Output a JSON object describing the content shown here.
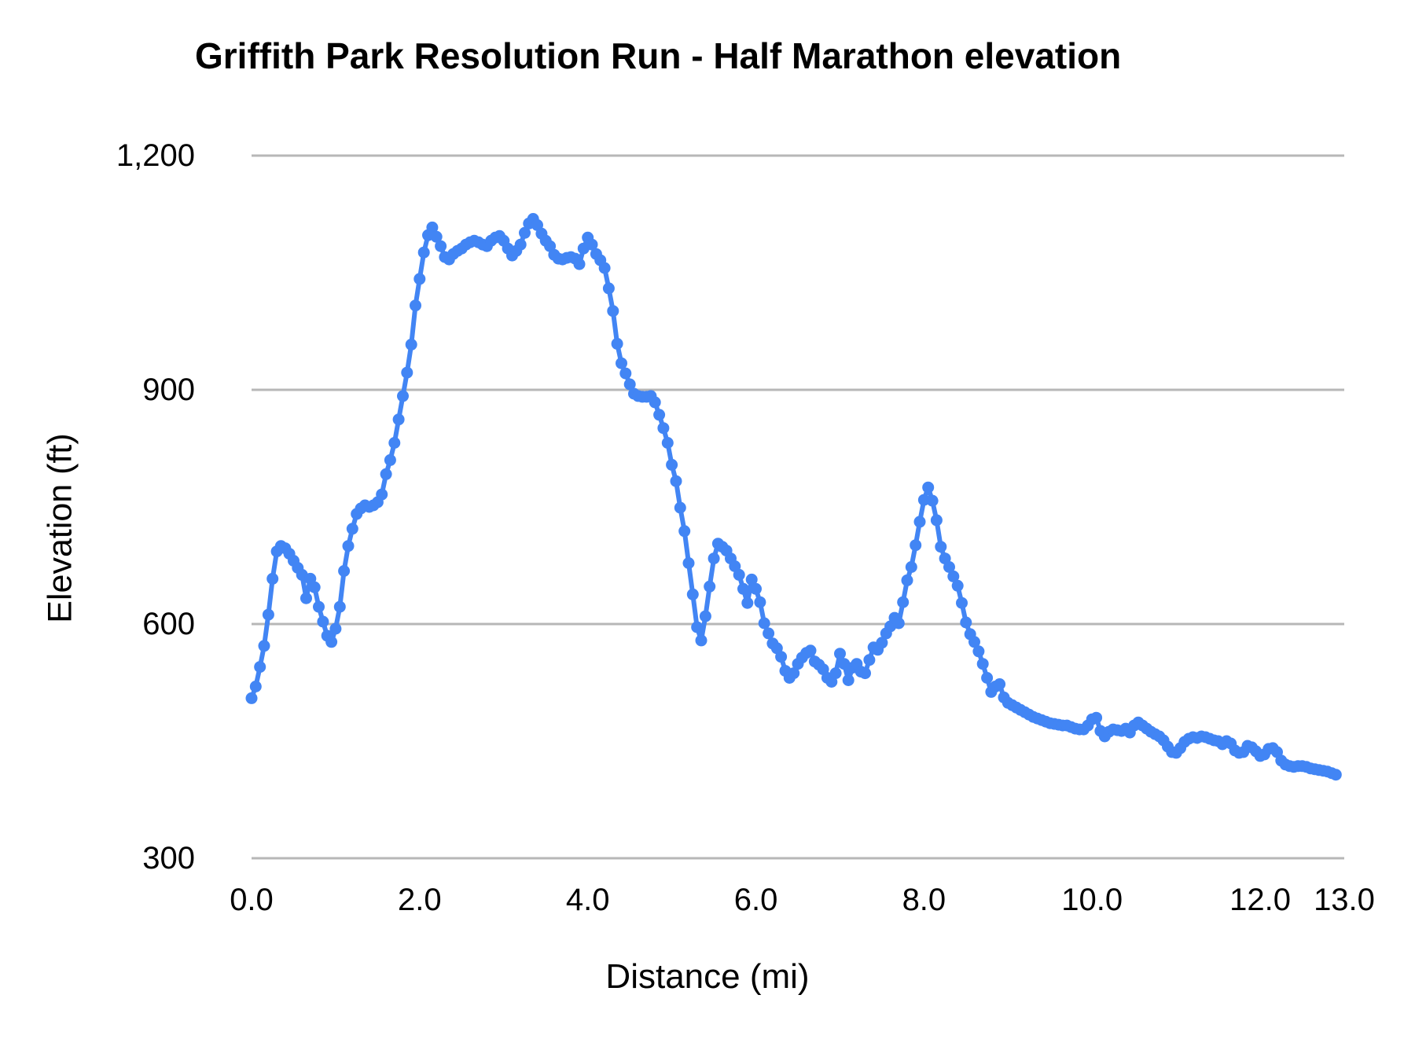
{
  "chart": {
    "title": "Griffith Park Resolution Run - Half Marathon elevation",
    "colors": {
      "series": "#4285f4",
      "gridline": "#b7b7b7",
      "text": "#000000",
      "background": "#ffffff"
    },
    "y_axis": {
      "title": "Elevation (ft)",
      "tick_labels": [
        "1,200",
        "900",
        "600",
        "300"
      ],
      "tick_values": [
        1200,
        900,
        600,
        300
      ]
    },
    "x_axis": {
      "title": "Distance (mi)",
      "tick_labels": [
        "0.0",
        "2.0",
        "4.0",
        "6.0",
        "8.0",
        "10.0",
        "12.0",
        "13.0"
      ],
      "tick_values": [
        0,
        2,
        4,
        6,
        8,
        10,
        12,
        13
      ]
    }
  },
  "chart_data": {
    "type": "line",
    "title": "Griffith Park Resolution Run - Half Marathon elevation",
    "xlabel": "Distance (mi)",
    "ylabel": "Elevation (ft)",
    "xlim": [
      0,
      13
    ],
    "ylim": [
      300,
      1200
    ],
    "grid": true,
    "legend": "none",
    "marker": "circle",
    "series_name": "Elevation",
    "points_mi_ft": [
      [
        0.0,
        505
      ],
      [
        0.05,
        520
      ],
      [
        0.1,
        545
      ],
      [
        0.15,
        572
      ],
      [
        0.2,
        612
      ],
      [
        0.25,
        658
      ],
      [
        0.3,
        693
      ],
      [
        0.35,
        700
      ],
      [
        0.4,
        697
      ],
      [
        0.45,
        690
      ],
      [
        0.5,
        681
      ],
      [
        0.55,
        672
      ],
      [
        0.6,
        663
      ],
      [
        0.65,
        633
      ],
      [
        0.7,
        658
      ],
      [
        0.75,
        647
      ],
      [
        0.8,
        622
      ],
      [
        0.85,
        603
      ],
      [
        0.9,
        585
      ],
      [
        0.95,
        577
      ],
      [
        1.0,
        594
      ],
      [
        1.05,
        622
      ],
      [
        1.1,
        668
      ],
      [
        1.15,
        700
      ],
      [
        1.2,
        722
      ],
      [
        1.25,
        741
      ],
      [
        1.3,
        748
      ],
      [
        1.35,
        752
      ],
      [
        1.4,
        750
      ],
      [
        1.45,
        752
      ],
      [
        1.5,
        756
      ],
      [
        1.55,
        766
      ],
      [
        1.6,
        792
      ],
      [
        1.65,
        810
      ],
      [
        1.7,
        832
      ],
      [
        1.75,
        862
      ],
      [
        1.8,
        892
      ],
      [
        1.85,
        922
      ],
      [
        1.9,
        958
      ],
      [
        1.95,
        1008
      ],
      [
        2.0,
        1042
      ],
      [
        2.05,
        1076
      ],
      [
        2.1,
        1098
      ],
      [
        2.15,
        1108
      ],
      [
        2.2,
        1096
      ],
      [
        2.25,
        1084
      ],
      [
        2.3,
        1070
      ],
      [
        2.35,
        1067
      ],
      [
        2.4,
        1074
      ],
      [
        2.45,
        1078
      ],
      [
        2.5,
        1081
      ],
      [
        2.55,
        1086
      ],
      [
        2.6,
        1089
      ],
      [
        2.65,
        1091
      ],
      [
        2.7,
        1089
      ],
      [
        2.75,
        1086
      ],
      [
        2.8,
        1084
      ],
      [
        2.85,
        1091
      ],
      [
        2.9,
        1095
      ],
      [
        2.95,
        1097
      ],
      [
        3.0,
        1091
      ],
      [
        3.05,
        1081
      ],
      [
        3.1,
        1072
      ],
      [
        3.15,
        1078
      ],
      [
        3.2,
        1086
      ],
      [
        3.25,
        1101
      ],
      [
        3.3,
        1113
      ],
      [
        3.35,
        1119
      ],
      [
        3.4,
        1111
      ],
      [
        3.45,
        1100
      ],
      [
        3.5,
        1091
      ],
      [
        3.55,
        1084
      ],
      [
        3.6,
        1073
      ],
      [
        3.65,
        1068
      ],
      [
        3.7,
        1067
      ],
      [
        3.75,
        1069
      ],
      [
        3.8,
        1070
      ],
      [
        3.85,
        1068
      ],
      [
        3.9,
        1061
      ],
      [
        3.95,
        1081
      ],
      [
        4.0,
        1095
      ],
      [
        4.05,
        1086
      ],
      [
        4.1,
        1074
      ],
      [
        4.15,
        1066
      ],
      [
        4.2,
        1056
      ],
      [
        4.25,
        1030
      ],
      [
        4.3,
        1001
      ],
      [
        4.35,
        959
      ],
      [
        4.4,
        934
      ],
      [
        4.45,
        921
      ],
      [
        4.5,
        907
      ],
      [
        4.55,
        895
      ],
      [
        4.6,
        892
      ],
      [
        4.65,
        891
      ],
      [
        4.7,
        891
      ],
      [
        4.75,
        892
      ],
      [
        4.8,
        884
      ],
      [
        4.85,
        868
      ],
      [
        4.9,
        851
      ],
      [
        4.95,
        832
      ],
      [
        5.0,
        804
      ],
      [
        5.05,
        783
      ],
      [
        5.1,
        749
      ],
      [
        5.15,
        719
      ],
      [
        5.2,
        678
      ],
      [
        5.25,
        638
      ],
      [
        5.3,
        596
      ],
      [
        5.35,
        579
      ],
      [
        5.4,
        610
      ],
      [
        5.45,
        648
      ],
      [
        5.5,
        684
      ],
      [
        5.55,
        703
      ],
      [
        5.6,
        699
      ],
      [
        5.65,
        694
      ],
      [
        5.7,
        684
      ],
      [
        5.75,
        674
      ],
      [
        5.8,
        663
      ],
      [
        5.85,
        645
      ],
      [
        5.9,
        627
      ],
      [
        5.95,
        657
      ],
      [
        6.0,
        645
      ],
      [
        6.05,
        628
      ],
      [
        6.1,
        601
      ],
      [
        6.15,
        588
      ],
      [
        6.2,
        575
      ],
      [
        6.25,
        569
      ],
      [
        6.3,
        558
      ],
      [
        6.35,
        540
      ],
      [
        6.4,
        531
      ],
      [
        6.45,
        537
      ],
      [
        6.5,
        549
      ],
      [
        6.55,
        557
      ],
      [
        6.6,
        563
      ],
      [
        6.65,
        566
      ],
      [
        6.7,
        552
      ],
      [
        6.75,
        548
      ],
      [
        6.8,
        542
      ],
      [
        6.85,
        531
      ],
      [
        6.9,
        526
      ],
      [
        6.95,
        537
      ],
      [
        7.0,
        562
      ],
      [
        7.05,
        549
      ],
      [
        7.1,
        528
      ],
      [
        7.15,
        544
      ],
      [
        7.2,
        549
      ],
      [
        7.25,
        539
      ],
      [
        7.3,
        537
      ],
      [
        7.35,
        554
      ],
      [
        7.4,
        570
      ],
      [
        7.45,
        567
      ],
      [
        7.5,
        576
      ],
      [
        7.55,
        588
      ],
      [
        7.6,
        597
      ],
      [
        7.65,
        608
      ],
      [
        7.7,
        601
      ],
      [
        7.75,
        628
      ],
      [
        7.8,
        656
      ],
      [
        7.85,
        673
      ],
      [
        7.9,
        701
      ],
      [
        7.95,
        731
      ],
      [
        8.0,
        759
      ],
      [
        8.05,
        775
      ],
      [
        8.1,
        758
      ],
      [
        8.15,
        733
      ],
      [
        8.2,
        699
      ],
      [
        8.25,
        684
      ],
      [
        8.3,
        673
      ],
      [
        8.35,
        661
      ],
      [
        8.4,
        649
      ],
      [
        8.45,
        627
      ],
      [
        8.5,
        602
      ],
      [
        8.55,
        587
      ],
      [
        8.6,
        577
      ],
      [
        8.65,
        565
      ],
      [
        8.7,
        549
      ],
      [
        8.75,
        531
      ],
      [
        8.8,
        513
      ],
      [
        8.85,
        520
      ],
      [
        8.9,
        523
      ],
      [
        8.95,
        506
      ],
      [
        9.0,
        499
      ],
      [
        9.05,
        496
      ],
      [
        9.1,
        493
      ],
      [
        9.15,
        490
      ],
      [
        9.2,
        487
      ],
      [
        9.25,
        484
      ],
      [
        9.3,
        481
      ],
      [
        9.35,
        479
      ],
      [
        9.4,
        477
      ],
      [
        9.45,
        475
      ],
      [
        9.5,
        473
      ],
      [
        9.55,
        472
      ],
      [
        9.6,
        471
      ],
      [
        9.65,
        470
      ],
      [
        9.7,
        470
      ],
      [
        9.75,
        468
      ],
      [
        9.8,
        466
      ],
      [
        9.85,
        465
      ],
      [
        9.9,
        465
      ],
      [
        9.95,
        470
      ],
      [
        10.0,
        478
      ],
      [
        10.05,
        480
      ],
      [
        10.1,
        463
      ],
      [
        10.15,
        456
      ],
      [
        10.2,
        462
      ],
      [
        10.25,
        465
      ],
      [
        10.3,
        464
      ],
      [
        10.35,
        463
      ],
      [
        10.4,
        466
      ],
      [
        10.45,
        461
      ],
      [
        10.5,
        470
      ],
      [
        10.55,
        474
      ],
      [
        10.6,
        470
      ],
      [
        10.65,
        466
      ],
      [
        10.7,
        462
      ],
      [
        10.75,
        459
      ],
      [
        10.8,
        456
      ],
      [
        10.85,
        451
      ],
      [
        10.9,
        443
      ],
      [
        10.95,
        436
      ],
      [
        11.0,
        435
      ],
      [
        11.05,
        441
      ],
      [
        11.1,
        449
      ],
      [
        11.15,
        453
      ],
      [
        11.2,
        455
      ],
      [
        11.25,
        454
      ],
      [
        11.3,
        456
      ],
      [
        11.35,
        455
      ],
      [
        11.4,
        453
      ],
      [
        11.45,
        451
      ],
      [
        11.5,
        450
      ],
      [
        11.55,
        446
      ],
      [
        11.6,
        450
      ],
      [
        11.65,
        447
      ],
      [
        11.7,
        438
      ],
      [
        11.75,
        435
      ],
      [
        11.8,
        436
      ],
      [
        11.85,
        444
      ],
      [
        11.9,
        442
      ],
      [
        11.95,
        437
      ],
      [
        12.0,
        431
      ],
      [
        12.05,
        433
      ],
      [
        12.1,
        440
      ],
      [
        12.15,
        441
      ],
      [
        12.2,
        436
      ],
      [
        12.25,
        425
      ],
      [
        12.3,
        420
      ],
      [
        12.35,
        418
      ],
      [
        12.4,
        417
      ],
      [
        12.45,
        418
      ],
      [
        12.5,
        418
      ],
      [
        12.55,
        417
      ],
      [
        12.6,
        415
      ],
      [
        12.65,
        414
      ],
      [
        12.7,
        413
      ],
      [
        12.75,
        412
      ],
      [
        12.8,
        411
      ],
      [
        12.85,
        409
      ],
      [
        12.9,
        407
      ]
    ]
  }
}
